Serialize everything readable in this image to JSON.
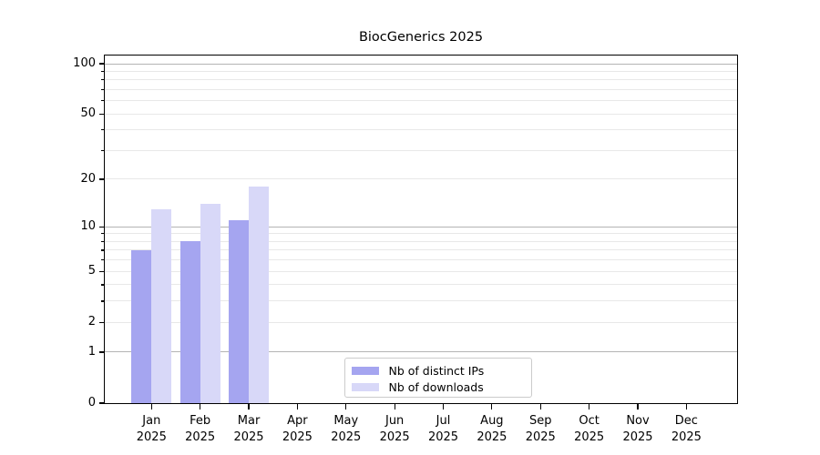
{
  "chart_data": {
    "type": "bar",
    "title": "BiocGenerics 2025",
    "x_months": [
      "Jan",
      "Feb",
      "Mar",
      "Apr",
      "May",
      "Jun",
      "Jul",
      "Aug",
      "Sep",
      "Oct",
      "Nov",
      "Dec"
    ],
    "x_year": "2025",
    "series": [
      {
        "name": "Nb of distinct IPs",
        "color": "#a5a5f0",
        "values": [
          7,
          8,
          11,
          null,
          null,
          null,
          null,
          null,
          null,
          null,
          null,
          null
        ]
      },
      {
        "name": "Nb of downloads",
        "color": "#d8d8f8",
        "values": [
          13,
          14,
          18,
          null,
          null,
          null,
          null,
          null,
          null,
          null,
          null,
          null
        ]
      }
    ],
    "yscale": "log1p",
    "ylim": [
      0,
      115
    ],
    "y_ticks_labeled": [
      0,
      1,
      2,
      5,
      10,
      20,
      50,
      100
    ],
    "y_ticks_minor": [
      3,
      4,
      6,
      7,
      8,
      9,
      30,
      40,
      60,
      70,
      80,
      90
    ],
    "y_grid_major": [
      1,
      10,
      100
    ],
    "y_grid_minor": [
      2,
      3,
      4,
      5,
      6,
      7,
      8,
      9,
      20,
      30,
      40,
      50,
      60,
      70,
      80,
      90
    ],
    "grid_color_major": "#b4b4b4",
    "grid_color_minor": "#e8e8e8",
    "legend_position": "inside-bottom-center"
  }
}
